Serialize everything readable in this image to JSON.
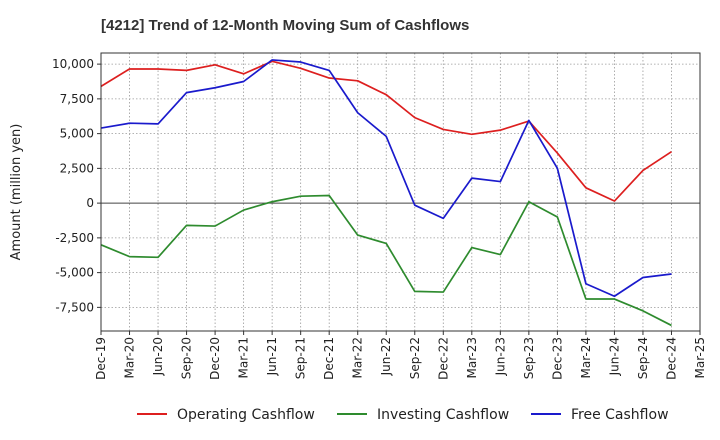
{
  "chart_data": {
    "type": "line",
    "title": "[4212]  Trend of 12-Month Moving Sum of Cashflows",
    "xlabel": "",
    "ylabel": "Amount (million yen)",
    "categories": [
      "Dec-19",
      "Mar-20",
      "Jun-20",
      "Sep-20",
      "Dec-20",
      "Mar-21",
      "Jun-21",
      "Sep-21",
      "Dec-21",
      "Mar-22",
      "Jun-22",
      "Sep-22",
      "Dec-22",
      "Mar-23",
      "Jun-23",
      "Sep-23",
      "Dec-23",
      "Mar-24",
      "Jun-24",
      "Sep-24",
      "Dec-24",
      "Mar-25"
    ],
    "yticks": [
      -7500,
      -5000,
      -2500,
      0,
      2500,
      5000,
      7500,
      10000
    ],
    "ytick_labels": [
      "-7,500",
      "-5,000",
      "-2,500",
      "0",
      "2,500",
      "5,000",
      "7,500",
      "10,000"
    ],
    "ylim": [
      -9200,
      10800
    ],
    "grid": true,
    "legend_position": "bottom",
    "series": [
      {
        "name": "Operating Cashflow",
        "color": "#dd1f1f",
        "values": [
          8400,
          9650,
          9650,
          9550,
          9950,
          9300,
          10200,
          9700,
          9000,
          8800,
          7800,
          6150,
          5300,
          4950,
          5250,
          5900,
          3600,
          1100,
          150,
          2350,
          3700,
          null
        ]
      },
      {
        "name": "Investing Cashflow",
        "color": "#2e8b2e",
        "values": [
          -3000,
          -3850,
          -3900,
          -1600,
          -1650,
          -500,
          100,
          500,
          550,
          -2300,
          -2900,
          -6350,
          -6400,
          -3200,
          -3700,
          100,
          -1000,
          -6900,
          -6900,
          -7750,
          -8800,
          null
        ]
      },
      {
        "name": "Free Cashflow",
        "color": "#1a1acc",
        "values": [
          5400,
          5750,
          5700,
          7950,
          8300,
          8750,
          10300,
          10150,
          9550,
          6500,
          4800,
          -150,
          -1100,
          1800,
          1550,
          5950,
          2500,
          -5800,
          -6700,
          -5350,
          -5100,
          null
        ]
      }
    ]
  }
}
